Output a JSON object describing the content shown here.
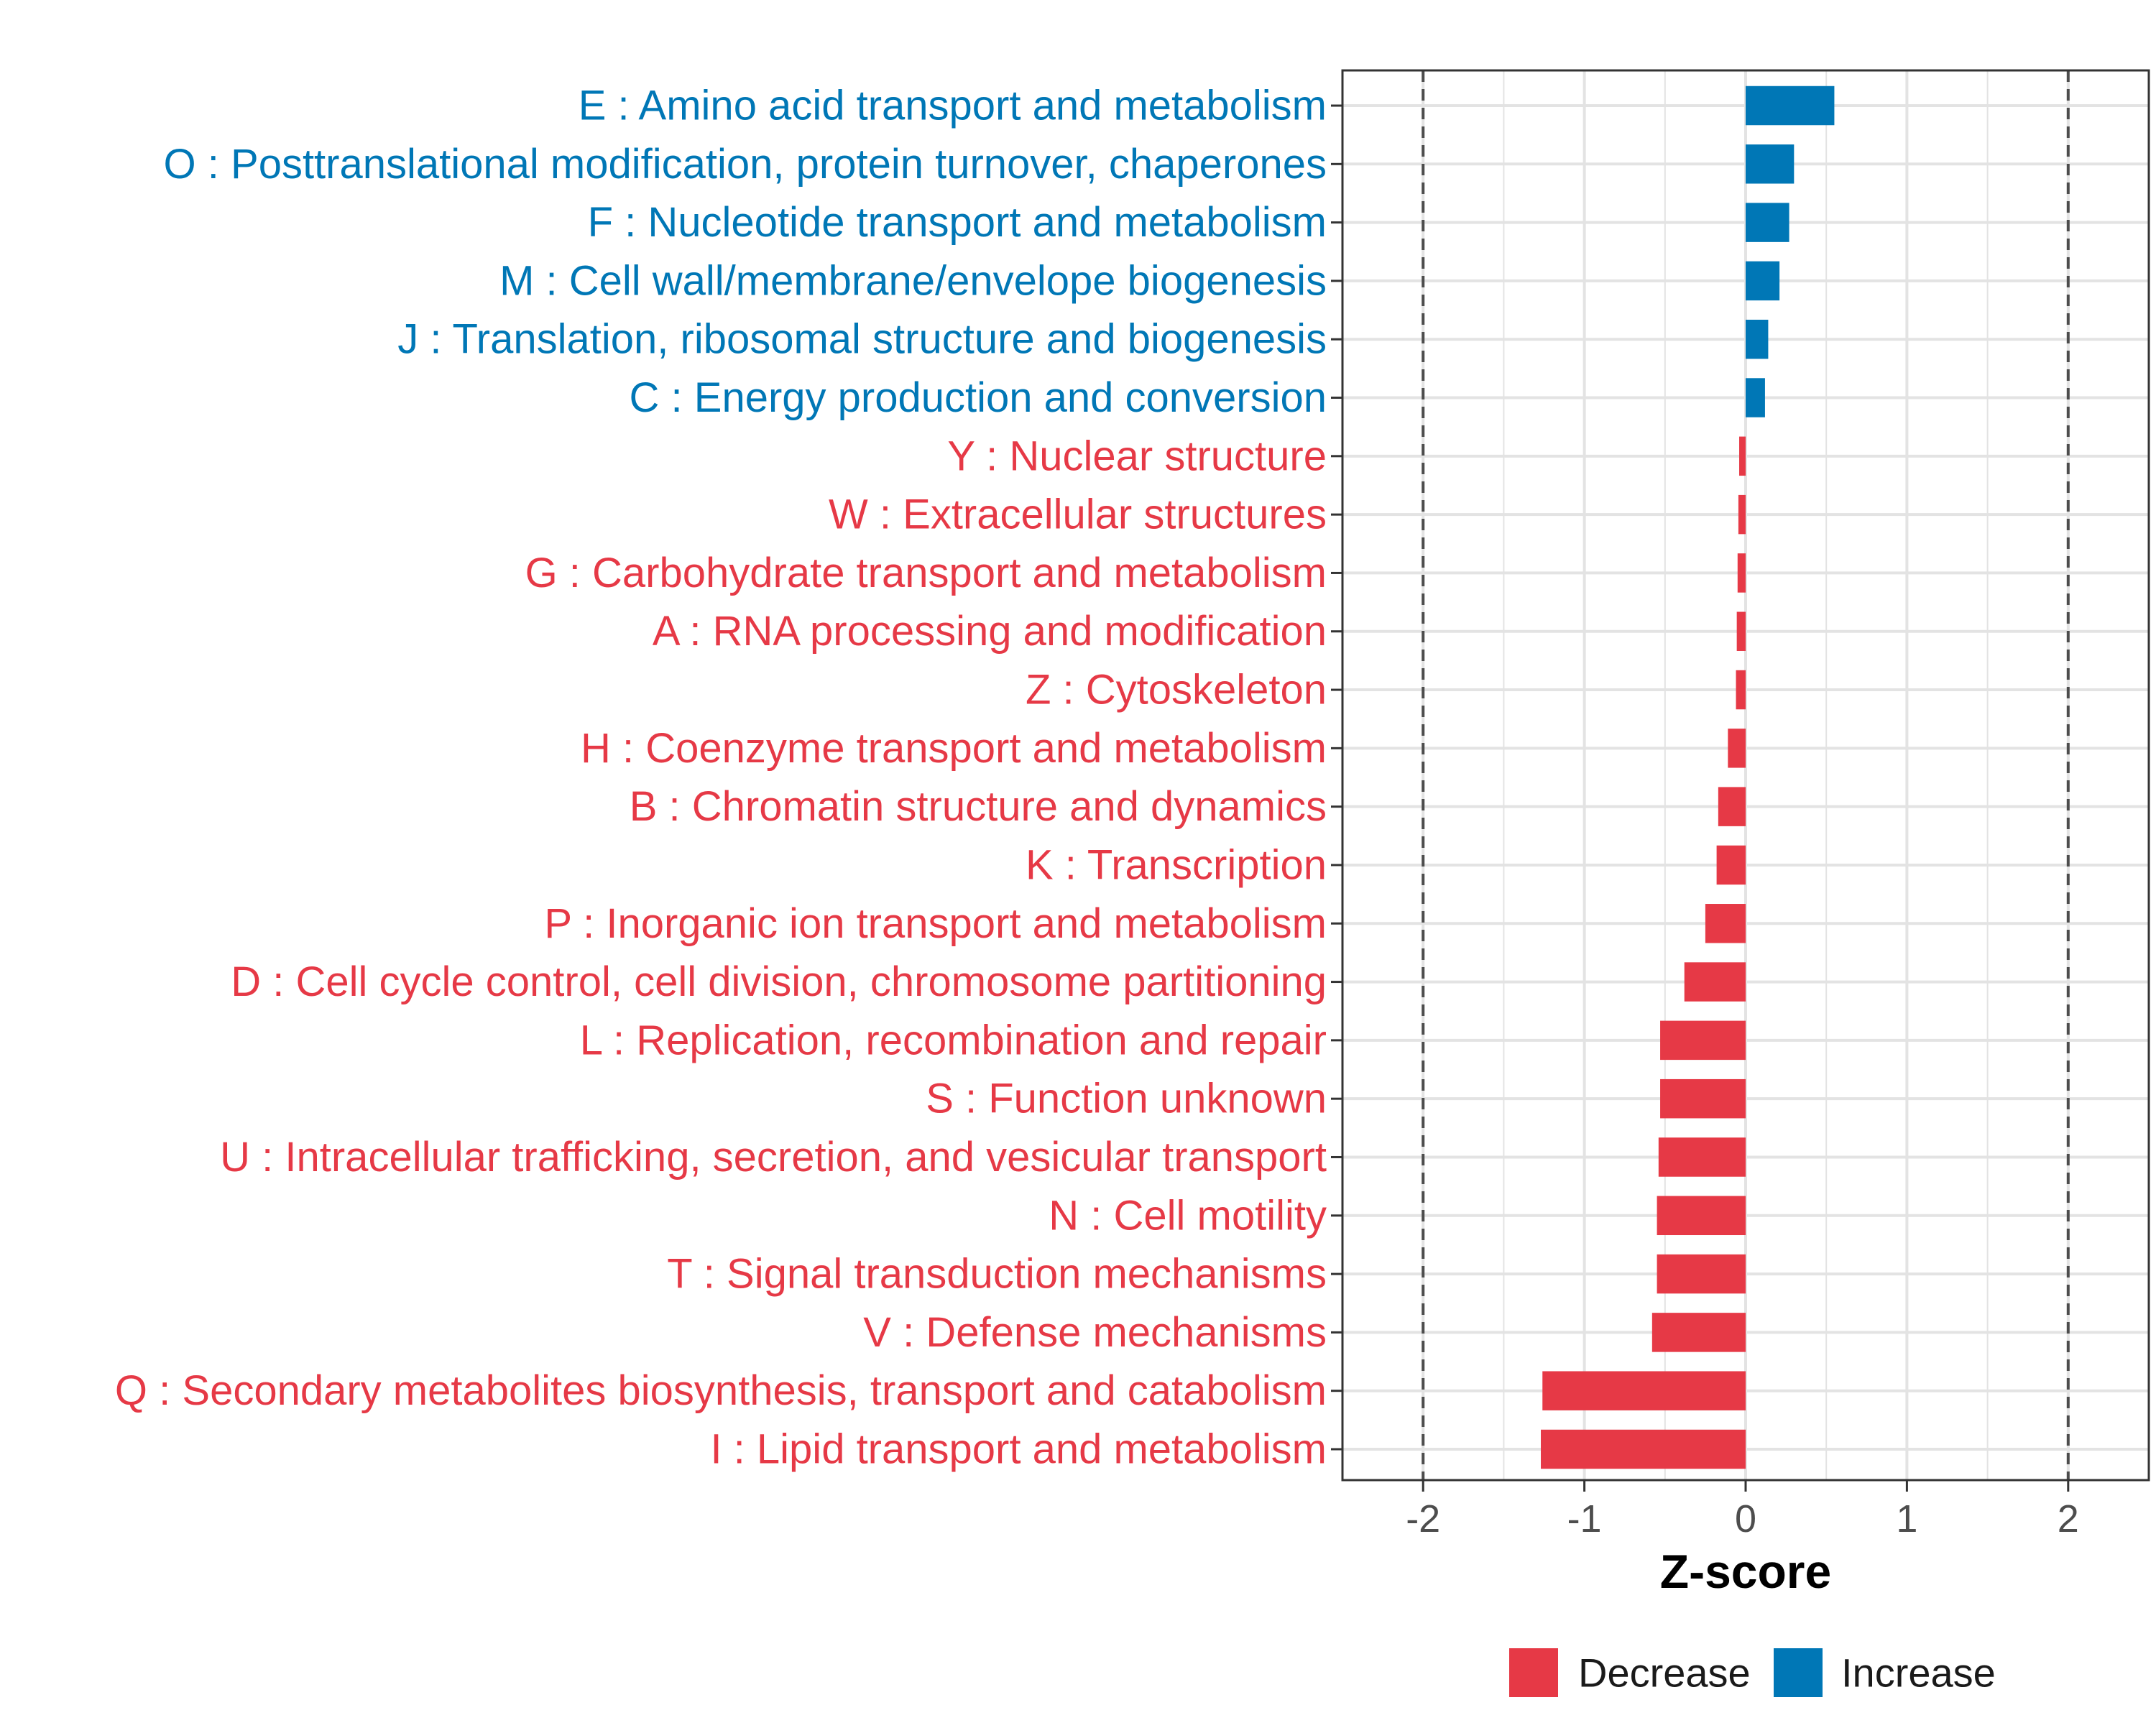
{
  "chart_data": {
    "type": "bar",
    "orientation": "horizontal",
    "xlabel": "Z-score",
    "xlim": [
      -2.5,
      2.5
    ],
    "xticks": [
      -2,
      -1,
      0,
      1,
      2
    ],
    "xtick_labels": [
      "-2",
      "-1",
      "0",
      "1",
      "2"
    ],
    "reference_lines": [
      -2,
      2
    ],
    "grid": true,
    "colors": {
      "Decrease": "#E63946",
      "Increase": "#0077B6"
    },
    "categories": [
      {
        "label": "E : Amino acid transport and metabolism",
        "value": 0.55,
        "group": "Increase"
      },
      {
        "label": "O : Posttranslational modification, protein turnover, chaperones",
        "value": 0.3,
        "group": "Increase"
      },
      {
        "label": "F : Nucleotide transport and metabolism",
        "value": 0.27,
        "group": "Increase"
      },
      {
        "label": "M : Cell wall/membrane/envelope biogenesis",
        "value": 0.21,
        "group": "Increase"
      },
      {
        "label": "J : Translation, ribosomal structure and biogenesis",
        "value": 0.14,
        "group": "Increase"
      },
      {
        "label": "C : Energy production and conversion",
        "value": 0.12,
        "group": "Increase"
      },
      {
        "label": "Y : Nuclear structure",
        "value": -0.04,
        "group": "Decrease"
      },
      {
        "label": "W : Extracellular structures",
        "value": -0.045,
        "group": "Decrease"
      },
      {
        "label": "G : Carbohydrate transport and metabolism",
        "value": -0.05,
        "group": "Decrease"
      },
      {
        "label": "A : RNA processing and modification",
        "value": -0.055,
        "group": "Decrease"
      },
      {
        "label": "Z : Cytoskeleton",
        "value": -0.06,
        "group": "Decrease"
      },
      {
        "label": "H : Coenzyme transport and metabolism",
        "value": -0.11,
        "group": "Decrease"
      },
      {
        "label": "B : Chromatin structure and dynamics",
        "value": -0.17,
        "group": "Decrease"
      },
      {
        "label": "K : Transcription",
        "value": -0.18,
        "group": "Decrease"
      },
      {
        "label": "P : Inorganic ion transport and metabolism",
        "value": -0.25,
        "group": "Decrease"
      },
      {
        "label": "D : Cell cycle control, cell division, chromosome partitioning",
        "value": -0.38,
        "group": "Decrease"
      },
      {
        "label": "L : Replication, recombination and repair",
        "value": -0.53,
        "group": "Decrease"
      },
      {
        "label": "S : Function unknown",
        "value": -0.53,
        "group": "Decrease"
      },
      {
        "label": "U : Intracellular trafficking, secretion, and vesicular transport",
        "value": -0.54,
        "group": "Decrease"
      },
      {
        "label": "N : Cell motility",
        "value": -0.55,
        "group": "Decrease"
      },
      {
        "label": "T : Signal transduction mechanisms",
        "value": -0.55,
        "group": "Decrease"
      },
      {
        "label": "V : Defense mechanisms",
        "value": -0.58,
        "group": "Decrease"
      },
      {
        "label": "Q : Secondary metabolites biosynthesis, transport and catabolism",
        "value": -1.26,
        "group": "Decrease"
      },
      {
        "label": "I : Lipid transport and metabolism",
        "value": -1.27,
        "group": "Decrease"
      }
    ],
    "legend": {
      "position": "bottom",
      "items": [
        {
          "label": "Decrease",
          "color": "#E63946"
        },
        {
          "label": "Increase",
          "color": "#0077B6"
        }
      ]
    }
  }
}
